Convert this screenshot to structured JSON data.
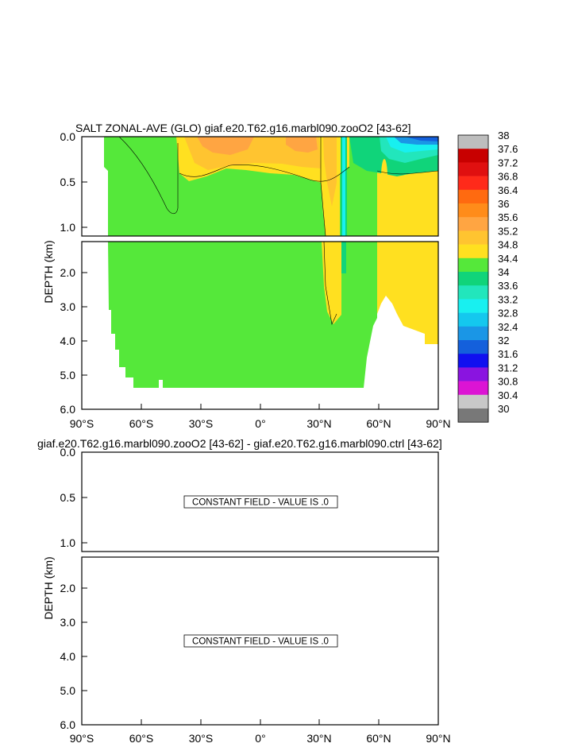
{
  "chart_data": [
    {
      "type": "heatmap",
      "title": "SALT ZONAL-AVE (GLO) giaf.e20.T62.g16.marbl090.zooO2 [43-62]",
      "xlabel": "",
      "ylabel": "DEPTH (km)",
      "x_ticks": [
        "90°S",
        "60°S",
        "30°S",
        "0°",
        "30°N",
        "60°N",
        "90°N"
      ],
      "x_tick_values": [
        -90,
        -60,
        -30,
        0,
        30,
        60,
        90
      ],
      "xlim": [
        -90,
        90
      ],
      "upper_panel": {
        "ylim": [
          0,
          1.15
        ],
        "y_ticks": [
          "0.0",
          "0.5",
          "1.0"
        ],
        "y_tick_values": [
          0,
          0.5,
          1.0
        ]
      },
      "lower_panel": {
        "ylim": [
          1.15,
          6.0
        ],
        "y_ticks": [
          "2.0",
          "3.0",
          "4.0",
          "5.0",
          "6.0"
        ],
        "y_tick_values": [
          2,
          3,
          4,
          5,
          6
        ]
      },
      "colorbar": {
        "levels": [
          "38",
          "37.6",
          "37.2",
          "36.8",
          "36.4",
          "36",
          "35.6",
          "35.2",
          "34.8",
          "34.4",
          "34",
          "33.6",
          "33.2",
          "32.8",
          "32.4",
          "32",
          "31.6",
          "31.2",
          "30.8",
          "30.4",
          "30"
        ],
        "colors": [
          "#bdbdbd",
          "#c80000",
          "#e01010",
          "#ff2a1a",
          "#ff6a10",
          "#ff8c1a",
          "#ffa542",
          "#ffc430",
          "#ffe020",
          "#55e83a",
          "#10d47a",
          "#22e6bc",
          "#18f0f0",
          "#14c8ee",
          "#1a96e6",
          "#1460dc",
          "#1010f0",
          "#8a14e0",
          "#dc14d4",
          "#c8c8c8",
          "#787878"
        ]
      },
      "approx_fields": [
        {
          "region": "deep ocean, most latitudes",
          "value_range": "34.4-34.8"
        },
        {
          "region": "subtropical upper ocean 40°S-25°S",
          "value_range": "35.6-36.0"
        },
        {
          "region": "North Atlantic 30°N-60°N upper",
          "value_range": "35.2-35.6"
        },
        {
          "region": "Arctic surface 60°N-90°N",
          "value_range": "30.0-34.0"
        },
        {
          "region": "Arctic deep 60°N-90°N",
          "value_range": "34.8-35.2"
        }
      ]
    },
    {
      "type": "heatmap",
      "title": "giaf.e20.T62.g16.marbl090.zooO2 [43-62] - giaf.e20.T62.g16.marbl090.ctrl [43-62]",
      "xlabel": "",
      "ylabel": "DEPTH (km)",
      "x_ticks": [
        "90°S",
        "60°S",
        "30°S",
        "0°",
        "30°N",
        "60°N",
        "90°N"
      ],
      "x_tick_values": [
        -90,
        -60,
        -30,
        0,
        30,
        60,
        90
      ],
      "xlim": [
        -90,
        90
      ],
      "upper_panel": {
        "ylim": [
          0,
          1.15
        ],
        "y_ticks": [
          "0.0",
          "0.5",
          "1.0"
        ],
        "y_tick_values": [
          0,
          0.5,
          1.0
        ],
        "annotation": "CONSTANT FIELD - VALUE IS .0"
      },
      "lower_panel": {
        "ylim": [
          1.15,
          6.0
        ],
        "y_ticks": [
          "2.0",
          "3.0",
          "4.0",
          "5.0",
          "6.0"
        ],
        "y_tick_values": [
          2,
          3,
          4,
          5,
          6
        ],
        "annotation": "CONSTANT FIELD - VALUE IS .0"
      }
    }
  ]
}
